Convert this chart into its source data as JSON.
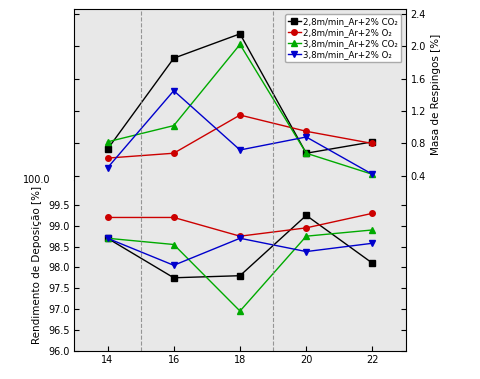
{
  "x": [
    14,
    16,
    18,
    20,
    22
  ],
  "mr_series": {
    "black_sq": [
      0.73,
      1.85,
      2.15,
      0.68,
      0.82
    ],
    "red_circ": [
      0.62,
      0.68,
      1.15,
      0.95,
      0.8
    ],
    "green_tri": [
      0.82,
      1.02,
      2.02,
      0.68,
      0.42
    ],
    "blue_tri": [
      0.5,
      1.45,
      0.72,
      0.88,
      0.42
    ]
  },
  "mr_ylim": [
    0.35,
    2.45
  ],
  "mr_yticks": [
    0.4,
    0.8,
    1.2,
    1.6,
    2.0,
    2.4
  ],
  "rd_series": {
    "black_sq": [
      98.7,
      97.75,
      97.8,
      99.25,
      98.1
    ],
    "red_circ": [
      99.2,
      99.2,
      98.75,
      98.95,
      99.3
    ],
    "green_tri": [
      98.7,
      98.55,
      96.95,
      98.75,
      98.9
    ],
    "blue_tri": [
      98.7,
      98.05,
      98.7,
      98.38,
      98.58
    ]
  },
  "rd_ylim": [
    96.0,
    100.1
  ],
  "rd_yticks": [
    96.0,
    96.5,
    97.0,
    97.5,
    98.0,
    98.5,
    99.0,
    99.5
  ],
  "rd_top_label": "100.0",
  "colors": [
    "#000000",
    "#cc0000",
    "#00aa00",
    "#0000cc"
  ],
  "markers": [
    "s",
    "o",
    "^",
    "v"
  ],
  "markersize": 4,
  "linewidth": 1.0,
  "legend_labels": [
    "2,8m/min_Ar+2% CO₂",
    "2,8m/min_Ar+2% O₂",
    "3,8m/min_Ar+2% CO₂",
    "3,8m/min_Ar+2% O₂"
  ],
  "ylabel_right": "Masa de Respingos [%]",
  "ylabel_left": "Rendimento de Deposição [%]",
  "vlines": [
    15,
    19
  ],
  "xlim": [
    13.0,
    23.0
  ],
  "xticks": [
    14,
    16,
    18,
    20,
    22
  ],
  "background_color": "#e8e8e8",
  "fontsize_ticks": 7,
  "fontsize_label": 7.5,
  "fontsize_legend": 6.2
}
